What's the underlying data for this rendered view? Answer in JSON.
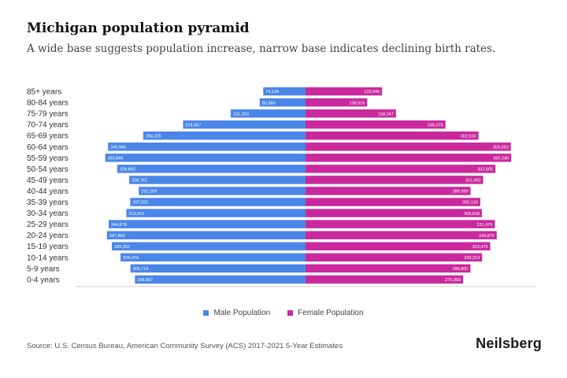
{
  "title": "Michigan population pyramid",
  "subtitle": "A wide base suggests population increase, narrow base indicates declining birth rates.",
  "source": "Source: U.S. Census Bureau, American Community Survey (ACS) 2017-2021 5-Year Estimates",
  "brand": "Neilsberg",
  "colors": {
    "male": "#4a86e8",
    "female": "#c9299d"
  },
  "chart_data": {
    "type": "bar",
    "orientation": "horizontal-pyramid",
    "title": "Michigan population pyramid",
    "categories": [
      "85+ years",
      "80-84 years",
      "75-79 years",
      "70-74 years",
      "65-69 years",
      "60-64 years",
      "55-59 years",
      "50-54 years",
      "45-49 years",
      "40-44 years",
      "35-39 years",
      "30-34 years",
      "25-29 years",
      "20-24 years",
      "15-19 years",
      "10-14 years",
      "5-9 years",
      "0-4 years"
    ],
    "series": [
      {
        "name": "Male Population",
        "values": [
          74134,
          80360,
          131200,
          214587,
          284320,
          345966,
          350845,
          329893,
          308761,
          292209,
          307022,
          313922,
          344878,
          347899,
          339252,
          324074,
          306714,
          298867
        ],
        "labels": [
          "74,134",
          "80,360",
          "131,200",
          "214,587",
          "284,320",
          "345,966",
          "350,845",
          "329,893",
          "308,761",
          "292,209",
          "307,022",
          "313,922",
          "344,878",
          "347,899",
          "339,252",
          "324,074",
          "306,714",
          "298,867"
        ]
      },
      {
        "name": "Female Population",
        "values": [
          133946,
          108016,
          158347,
          245076,
          302924,
          359550,
          360245,
          332605,
          311092,
          288999,
          306133,
          308818,
          331479,
          334875,
          323475,
          309219,
          288805,
          275993
        ],
        "labels": [
          "133,946",
          "108,016",
          "158,347",
          "245,076",
          "302,924",
          "359,550",
          "360,245",
          "332,605",
          "311,092",
          "288,999",
          "306,133",
          "308,818",
          "331,479",
          "334,875",
          "323,475",
          "309,219",
          "288,805",
          "275,993"
        ]
      }
    ],
    "xlim": [
      -400000,
      400000
    ],
    "legend": [
      "Male Population",
      "Female Population"
    ],
    "legend_position": "bottom"
  }
}
